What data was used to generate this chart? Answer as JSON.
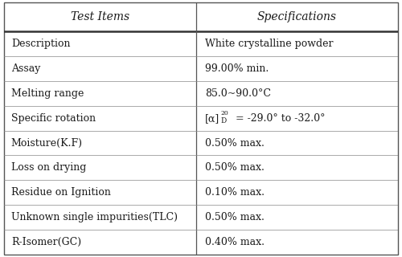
{
  "title_left": "Test Items",
  "title_right": "Specifications",
  "rows": [
    [
      "Description",
      "White crystalline powder"
    ],
    [
      "Assay",
      "99.00% min."
    ],
    [
      "Melting range",
      "85.0~90.0°C"
    ],
    [
      "Specific rotation",
      null
    ],
    [
      "Moisture(K.F)",
      "0.50% max."
    ],
    [
      "Loss on drying",
      "0.50% max."
    ],
    [
      "Residue on Ignition",
      "0.10% max."
    ],
    [
      "Unknown single impurities(TLC)",
      "0.50% max."
    ],
    [
      "R-Isomer(GC)",
      "0.40% max."
    ]
  ],
  "col_split": 0.488,
  "bg_color": "#ffffff",
  "text_color": "#1a1a1a",
  "header_fontsize": 10,
  "row_fontsize": 9,
  "specific_rotation_alpha": "[α]",
  "specific_rotation_sub": "D",
  "specific_rotation_super": "20",
  "specific_rotation_rest": " = -29.0° to -32.0°"
}
